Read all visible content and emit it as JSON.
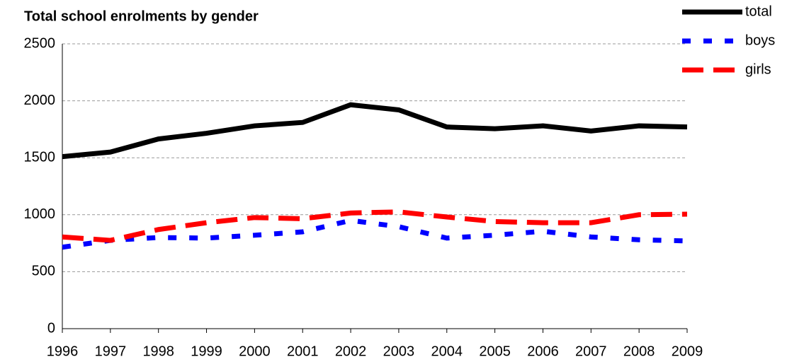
{
  "chart_data": {
    "type": "line",
    "title": "Total school enrolments by gender",
    "categories": [
      "1996",
      "1997",
      "1998",
      "1999",
      "2000",
      "2001",
      "2002",
      "2003",
      "2004",
      "2005",
      "2006",
      "2007",
      "2008",
      "2009"
    ],
    "series": [
      {
        "name": "total",
        "color": "#000000",
        "line_style": "solid",
        "values": [
          1510,
          1550,
          1665,
          1715,
          1780,
          1810,
          1965,
          1920,
          1770,
          1755,
          1780,
          1735,
          1780,
          1770
        ]
      },
      {
        "name": "boys",
        "color": "#0000ff",
        "line_style": "dashed",
        "values": [
          715,
          775,
          800,
          795,
          820,
          850,
          950,
          895,
          795,
          820,
          855,
          805,
          780,
          770
        ]
      },
      {
        "name": "girls",
        "color": "#ff0000",
        "line_style": "long-dashed",
        "values": [
          805,
          775,
          870,
          930,
          975,
          965,
          1015,
          1025,
          980,
          940,
          930,
          930,
          1000,
          1005
        ]
      }
    ],
    "ylim": [
      0,
      2500
    ],
    "yticks": [
      0,
      500,
      1000,
      1500,
      2000,
      2500
    ],
    "grid": true,
    "legend": "top-right"
  }
}
